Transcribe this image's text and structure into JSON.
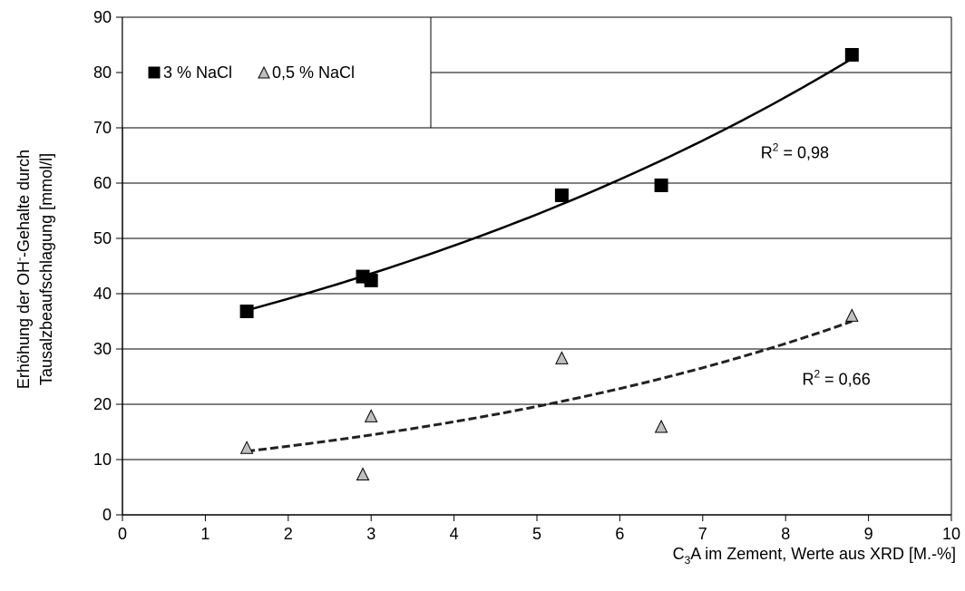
{
  "chart_data": {
    "type": "scatter",
    "title": "",
    "xlabel": {
      "prefix": "C",
      "subscript": "3",
      "suffix": "A  im Zement, Werte aus XRD [M.-%]"
    },
    "ylabel": {
      "line1_prefix": "Erhöhung der OH",
      "line1_superscript": "-",
      "line1_suffix": "-Gehalte durch",
      "line2": "Tausalzbeaufschlagung [mmol/l]"
    },
    "xlim": [
      0,
      10
    ],
    "ylim": [
      0,
      90
    ],
    "x_ticks": [
      0,
      1,
      2,
      3,
      4,
      5,
      6,
      7,
      8,
      9,
      10
    ],
    "y_ticks": [
      0,
      10,
      20,
      30,
      40,
      50,
      60,
      70,
      80,
      90
    ],
    "grid": "horizontal",
    "legend_position": "top-left",
    "series": [
      {
        "name": "3 % NaCl",
        "marker": "square",
        "color": "#000000",
        "x": [
          1.5,
          2.9,
          3.0,
          5.3,
          6.5,
          8.8
        ],
        "y": [
          36.8,
          43.1,
          42.4,
          57.8,
          59.6,
          83.2
        ],
        "trendline": {
          "style": "solid",
          "x_start": 1.5,
          "x_end": 8.8,
          "y_start": 37.0,
          "y_end": 82.5,
          "r2_label": "R",
          "r2_exp": "2",
          "r2_value": " = 0,98",
          "r2_x": 7.7,
          "r2_y": 64.5
        }
      },
      {
        "name": "0,5 % NaCl",
        "marker": "triangle",
        "color": "#bfbfbf",
        "x": [
          1.5,
          2.9,
          3.0,
          5.3,
          6.5,
          8.8
        ],
        "y": [
          12.1,
          7.3,
          17.8,
          28.3,
          15.9,
          36.0
        ],
        "trendline": {
          "style": "dashed",
          "x_start": 1.5,
          "x_end": 8.8,
          "y_start": 11.5,
          "y_end": 35.0,
          "r2_label": "R",
          "r2_exp": "2",
          "r2_value": " = 0,66",
          "r2_x": 8.2,
          "r2_y": 23.5
        }
      }
    ]
  }
}
